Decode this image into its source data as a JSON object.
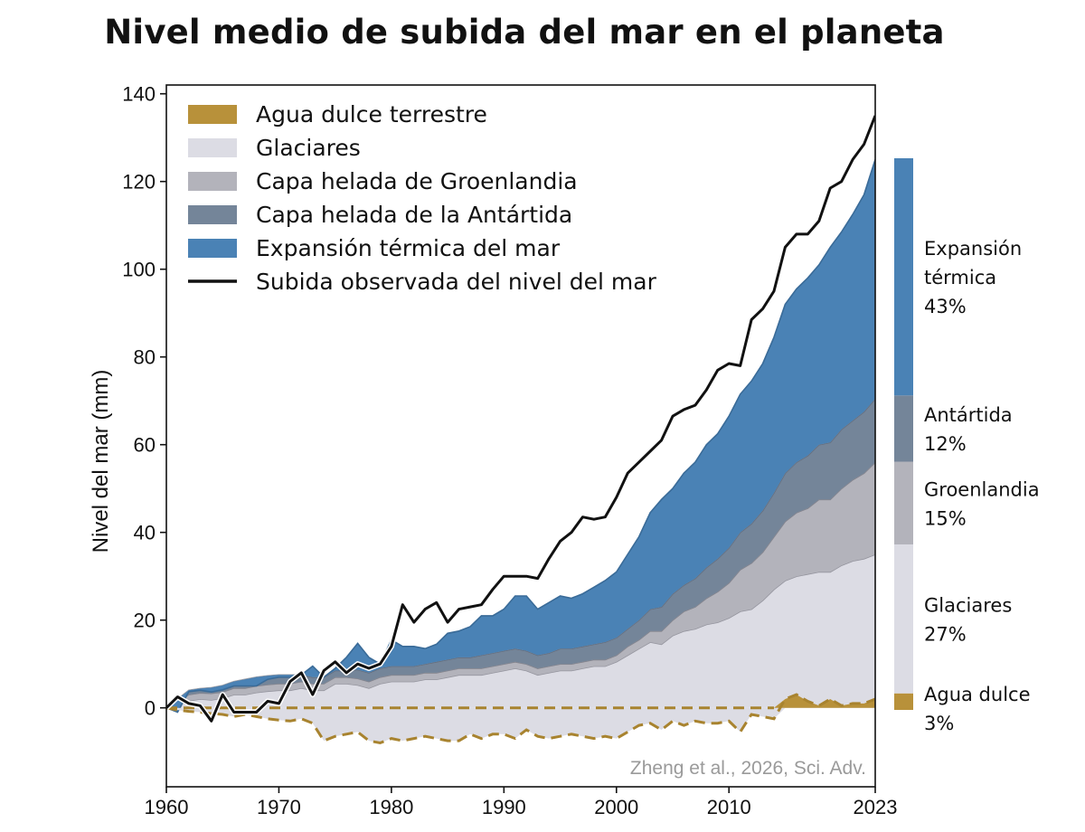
{
  "chart_data": {
    "type": "area",
    "title": "Nivel medio de subida del mar en el planeta",
    "xlabel": "",
    "ylabel": "Nivel del mar (mm)",
    "xlim": [
      1960,
      2023
    ],
    "ylim": [
      -18,
      142
    ],
    "x_ticks": [
      1960,
      1970,
      1980,
      1990,
      2000,
      2010,
      2023
    ],
    "y_ticks": [
      0,
      20,
      40,
      60,
      80,
      100,
      120,
      140
    ],
    "x": [
      1960,
      1961,
      1962,
      1963,
      1964,
      1965,
      1966,
      1967,
      1968,
      1969,
      1970,
      1971,
      1972,
      1973,
      1974,
      1975,
      1976,
      1977,
      1978,
      1979,
      1980,
      1981,
      1982,
      1983,
      1984,
      1985,
      1986,
      1987,
      1988,
      1989,
      1990,
      1991,
      1992,
      1993,
      1994,
      1995,
      1996,
      1997,
      1998,
      1999,
      2000,
      2001,
      2002,
      2003,
      2004,
      2005,
      2006,
      2007,
      2008,
      2009,
      2010,
      2011,
      2012,
      2013,
      2014,
      2015,
      2016,
      2017,
      2018,
      2019,
      2020,
      2021,
      2022,
      2023
    ],
    "series": [
      {
        "name": "Agua dulce terrestre",
        "color": "#b8913a",
        "values": [
          0,
          -0.5,
          -0.8,
          -1.0,
          -1.3,
          -1.5,
          -2.0,
          -1.5,
          -2.0,
          -2.5,
          -2.8,
          -3.0,
          -2.5,
          -3.5,
          -7.5,
          -6.5,
          -6.0,
          -5.5,
          -7.5,
          -8.0,
          -7.0,
          -7.5,
          -7.0,
          -6.5,
          -7.0,
          -7.5,
          -7.5,
          -6.0,
          -7.0,
          -6.0,
          -6.0,
          -7.0,
          -5.0,
          -6.5,
          -7.0,
          -6.5,
          -6.0,
          -6.5,
          -7.0,
          -6.5,
          -7.0,
          -5.5,
          -4.0,
          -3.5,
          -5.0,
          -3.0,
          -4.0,
          -3.0,
          -3.5,
          -3.5,
          -3.0,
          -5.5,
          -1.5,
          -2.0,
          -2.5,
          2.0,
          3.0,
          1.5,
          0.5,
          2.0,
          0.5,
          1.0,
          1.0,
          2.0
        ]
      },
      {
        "name": "Glaciares",
        "color": "#dcdce4",
        "values": [
          0,
          0.8,
          1.6,
          2.0,
          1.8,
          2.2,
          3.0,
          3.0,
          3.5,
          3.8,
          4.0,
          4.0,
          4.5,
          4.0,
          4.0,
          5.5,
          5.5,
          5.2,
          4.5,
          5.5,
          6.0,
          6.0,
          6.0,
          6.5,
          6.5,
          7.0,
          7.5,
          7.5,
          7.5,
          8.0,
          8.5,
          9.0,
          8.5,
          7.5,
          8.0,
          8.5,
          8.5,
          9.0,
          9.5,
          9.5,
          10.5,
          12.0,
          13.5,
          15.0,
          14.5,
          16.5,
          17.5,
          18.0,
          19.0,
          19.5,
          20.5,
          22.0,
          22.5,
          24.5,
          27.0,
          29.0,
          30.0,
          30.5,
          31.0,
          31.0,
          32.5,
          33.5,
          34.0,
          35.0
        ]
      },
      {
        "name": "Capa helada de Groenlandia",
        "color": "#b3b3bb",
        "values": [
          0,
          0.7,
          1.4,
          1.4,
          1.5,
          1.4,
          1.5,
          1.5,
          1.5,
          1.5,
          1.5,
          1.5,
          1.5,
          1.5,
          1.5,
          1.5,
          1.5,
          1.5,
          1.5,
          1.5,
          1.5,
          1.5,
          1.5,
          1.5,
          1.5,
          1.5,
          1.5,
          1.5,
          1.5,
          1.5,
          1.5,
          1.5,
          1.5,
          1.5,
          1.5,
          1.5,
          1.5,
          1.5,
          1.5,
          1.5,
          1.5,
          2.0,
          2.0,
          2.5,
          3.0,
          3.5,
          4.5,
          5.0,
          6.0,
          7.0,
          8.0,
          9.5,
          10.5,
          11.0,
          12.0,
          13.5,
          14.5,
          15.0,
          16.5,
          16.5,
          17.5,
          18.5,
          19.5,
          21.0
        ]
      },
      {
        "name": "Capa helada de la Antártida",
        "color": "#748599",
        "values": [
          0,
          0.5,
          1.0,
          1.0,
          1.3,
          1.5,
          1.5,
          2.0,
          2.0,
          2.0,
          2.0,
          2.0,
          1.5,
          1.5,
          1.5,
          1.5,
          1.5,
          2.0,
          2.0,
          2.0,
          2.0,
          2.0,
          2.0,
          2.0,
          2.5,
          2.5,
          2.5,
          2.5,
          3.0,
          3.0,
          3.0,
          3.0,
          3.0,
          3.0,
          3.0,
          3.5,
          3.5,
          3.5,
          3.5,
          4.0,
          4.0,
          4.0,
          4.5,
          5.0,
          5.5,
          6.0,
          6.0,
          6.5,
          7.0,
          7.5,
          8.0,
          8.5,
          9.0,
          9.5,
          10.0,
          11.0,
          11.5,
          12.0,
          12.5,
          13.0,
          13.5,
          13.5,
          14.0,
          14.5
        ]
      },
      {
        "name": "Expansión térmica del mar",
        "color": "#4a82b5",
        "values": [
          0,
          -3.0,
          -0.3,
          -0.4,
          -1.0,
          -1.0,
          -1.0,
          -1.5,
          -2.0,
          -0.8,
          -0.5,
          -0.5,
          0.0,
          2.5,
          0.0,
          0.5,
          3.0,
          6.0,
          3.5,
          1.0,
          6.0,
          4.5,
          4.5,
          3.5,
          4.0,
          6.0,
          6.0,
          7.0,
          9.0,
          8.5,
          9.5,
          12.0,
          12.5,
          10.5,
          11.5,
          12.0,
          11.5,
          12.0,
          13.0,
          14.0,
          15.0,
          17.0,
          19.0,
          22.0,
          24.5,
          24.0,
          25.5,
          26.5,
          28.0,
          28.5,
          30.0,
          31.5,
          32.5,
          33.5,
          35.5,
          38.5,
          39.5,
          40.5,
          41.0,
          44.5,
          45.0,
          47.0,
          49.5,
          54.5
        ]
      }
    ],
    "observed": {
      "name": "Subida observada del nivel del mar",
      "color": "#111111",
      "values": [
        0,
        2.5,
        1.0,
        0.5,
        -3.0,
        3.0,
        -1.0,
        -1.0,
        -1.0,
        1.5,
        1.0,
        6.0,
        8.0,
        3.0,
        8.5,
        10.5,
        8.0,
        10.0,
        9.0,
        10.0,
        14.0,
        23.5,
        19.5,
        22.5,
        24.0,
        19.5,
        22.5,
        23.0,
        23.5,
        27.0,
        30.0,
        30.0,
        30.0,
        29.5,
        34.0,
        38.0,
        40.0,
        43.5,
        43.0,
        43.5,
        48.0,
        53.5,
        56.0,
        58.5,
        61.0,
        66.5,
        68.0,
        69.0,
        72.5,
        77.0,
        78.5,
        78.0,
        88.5,
        91.0,
        95.0,
        105.0,
        108.0,
        108.0,
        111.0,
        118.5,
        120.0,
        125.0,
        128.5,
        135.0
      ]
    },
    "legend": {
      "position": "top-left",
      "items": [
        {
          "label": "Agua dulce terrestre",
          "color": "#b8913a",
          "kind": "patch"
        },
        {
          "label": "Glaciares",
          "color": "#dcdce4",
          "kind": "patch"
        },
        {
          "label": "Capa helada de Groenlandia",
          "color": "#b3b3bb",
          "kind": "patch"
        },
        {
          "label": "Capa helada de la Antártida",
          "color": "#748599",
          "kind": "patch"
        },
        {
          "label": "Expansión térmica del mar",
          "color": "#4a82b5",
          "kind": "patch"
        },
        {
          "label": "Subida observada del nivel del mar",
          "color": "#111111",
          "kind": "line"
        }
      ]
    },
    "share_bar": [
      {
        "label_lines": [
          "Agua dulce",
          "3%"
        ],
        "percent": 3,
        "color": "#b8913a"
      },
      {
        "label_lines": [
          "Glaciares",
          "27%"
        ],
        "percent": 27,
        "color": "#dcdce4"
      },
      {
        "label_lines": [
          "Groenlandia",
          "15%"
        ],
        "percent": 15,
        "color": "#b3b3bb"
      },
      {
        "label_lines": [
          "Antártida",
          "12%"
        ],
        "percent": 12,
        "color": "#748599"
      },
      {
        "label_lines": [
          "Expansión",
          "térmica",
          "43%"
        ],
        "percent": 43,
        "color": "#4a82b5"
      }
    ],
    "credit": "Zheng et al., 2026, Sci. Adv.",
    "grid": false
  }
}
